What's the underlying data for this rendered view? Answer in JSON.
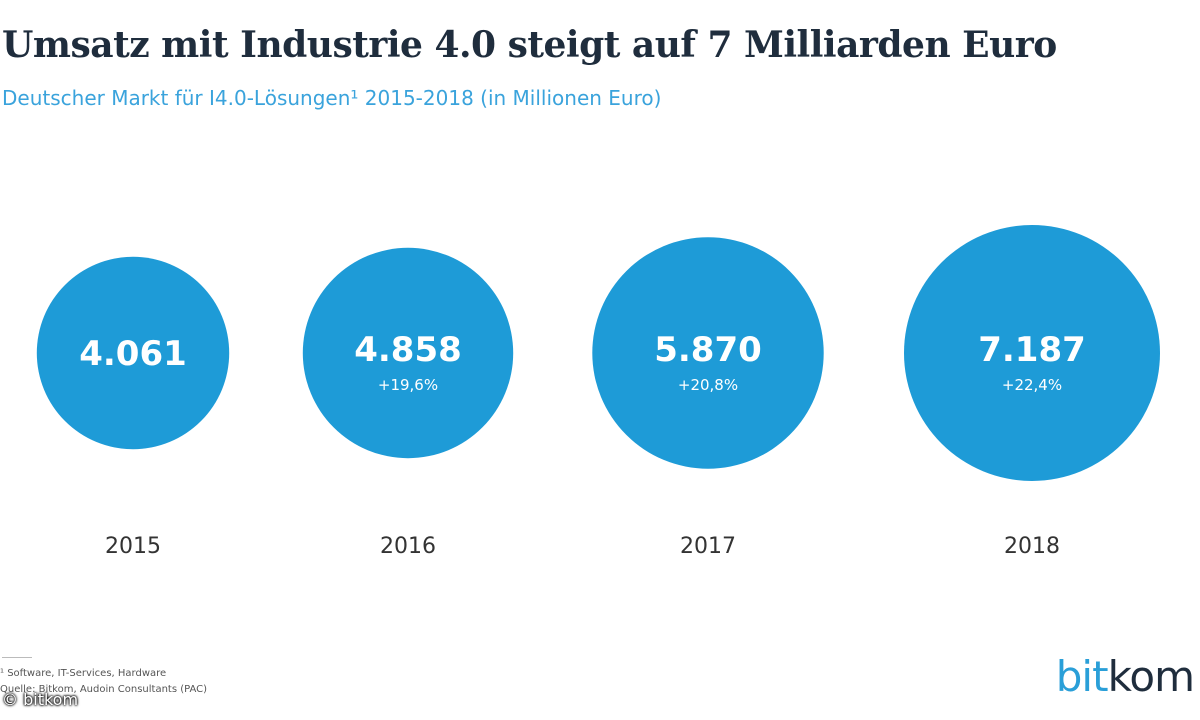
{
  "chart_data": {
    "type": "bubble",
    "title": "Umsatz mit Industrie 4.0 steigt auf 7 Milliarden Euro",
    "subtitle": "Deutscher Markt für I4.0-Lösungen¹ 2015-2018 (in Millionen Euro)",
    "categories": [
      "2015",
      "2016",
      "2017",
      "2018"
    ],
    "values": [
      4061,
      4858,
      5870,
      7187
    ],
    "value_labels": [
      "4.061",
      "4.858",
      "5.870",
      "7.187"
    ],
    "growth_labels": [
      "",
      "+19,6%",
      "+20,8%",
      "+22,4%"
    ],
    "unit": "Millionen Euro"
  },
  "footnotes": {
    "line1": "¹ Software, IT-Services, Hardware",
    "line2": "Quelle: Bitkom, Audoin Consultants (PAC)"
  },
  "copyright": "© bitkom",
  "logo": {
    "part1": "bit",
    "part2": "kom"
  },
  "colors": {
    "bubble": "#1e9bd7",
    "title": "#1f2d3d",
    "subtitle": "#3aa3dc"
  }
}
